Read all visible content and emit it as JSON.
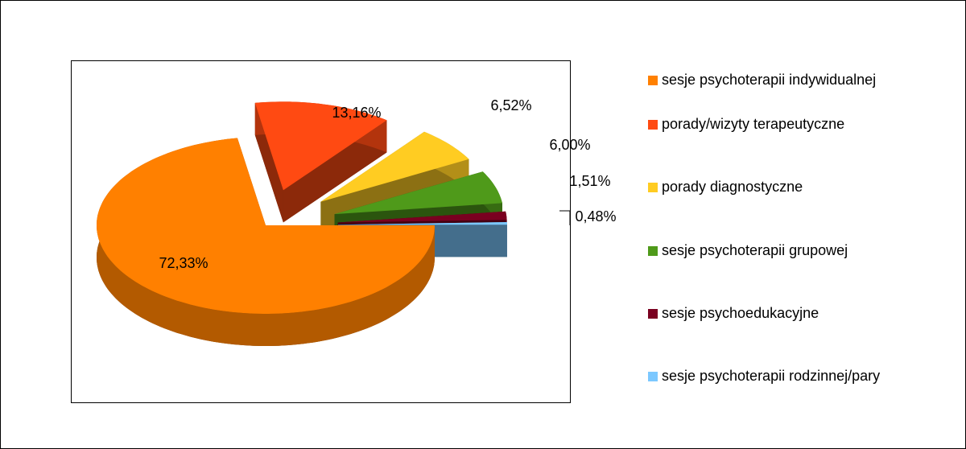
{
  "chart_data": {
    "type": "pie3d",
    "categories": [
      "sesje psychoterapii indywidualnej",
      "porady/wizyty terapeutyczne",
      "porady diagnostyczne",
      "sesje psychoterapii grupowej",
      "sesje psychoedukacyjne",
      "sesje psychoterapii rodzinnej/pary"
    ],
    "values": [
      72.33,
      13.16,
      6.52,
      6.0,
      1.51,
      0.48
    ],
    "value_labels": [
      "72,33%",
      "13,16%",
      "6,52%",
      "6,00%",
      "1,51%",
      "0,48%"
    ],
    "colors": [
      "#ff8000",
      "#ff4a12",
      "#ffcc22",
      "#4f9a1a",
      "#7a0020",
      "#7cc8ff"
    ],
    "legend": "right"
  }
}
